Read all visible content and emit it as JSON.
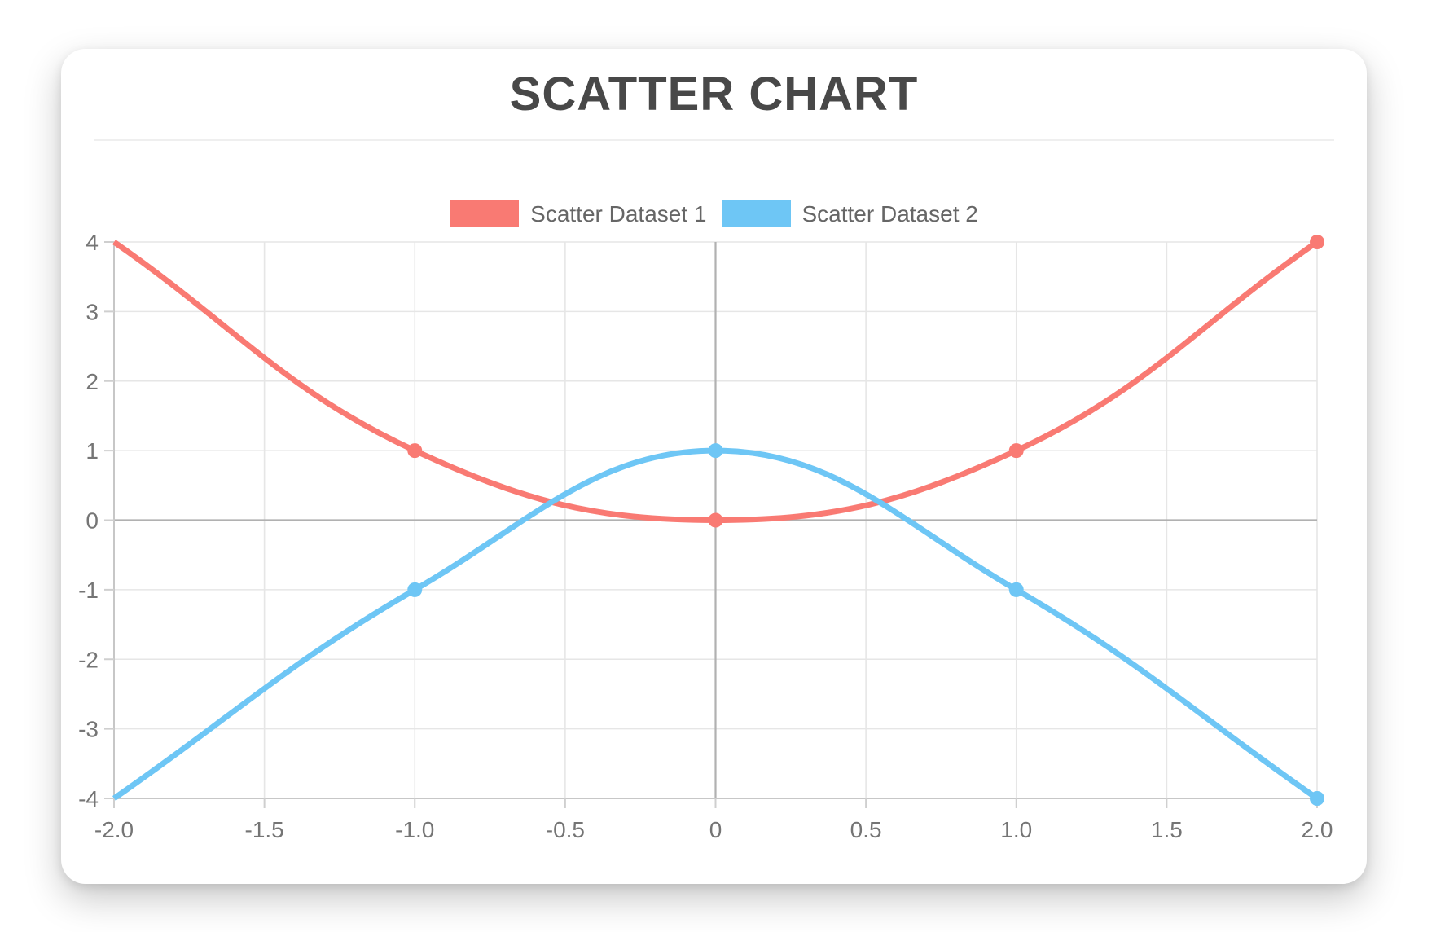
{
  "chart_data": {
    "type": "scatter",
    "title": "SCATTER CHART",
    "xlabel": "",
    "ylabel": "",
    "xlim": [
      -2.0,
      2.0
    ],
    "ylim": [
      -4,
      4
    ],
    "grid": true,
    "legend_position": "top",
    "line_style": "smooth-bezier",
    "x_tick_labels": [
      "-2.0",
      "-1.5",
      "-1.0",
      "-0.5",
      "0",
      "0.5",
      "1.0",
      "1.5",
      "2.0"
    ],
    "y_tick_labels": [
      "4",
      "3",
      "2",
      "1",
      "0",
      "-1",
      "-2",
      "-3",
      "-4"
    ],
    "series": [
      {
        "name": "Scatter Dataset 1",
        "color": "#f97a73",
        "show_line": true,
        "points": [
          [
            -2,
            4
          ],
          [
            -1,
            1
          ],
          [
            0,
            0
          ],
          [
            1,
            1
          ],
          [
            2,
            4
          ]
        ]
      },
      {
        "name": "Scatter Dataset 2",
        "color": "#6ec6f5",
        "show_line": true,
        "points": [
          [
            -2,
            -4
          ],
          [
            -1,
            -1
          ],
          [
            0,
            1
          ],
          [
            1,
            -1
          ],
          [
            2,
            -4
          ]
        ]
      }
    ],
    "colors": {
      "title_text": "#484848",
      "legend_text": "#666666",
      "tick_label": "#757575",
      "grid_line": "#e6e6e6",
      "zero_line": "#b1b1b1",
      "axis_border": "#c7c7c7",
      "tick_mark": "#cfcfcf"
    }
  }
}
